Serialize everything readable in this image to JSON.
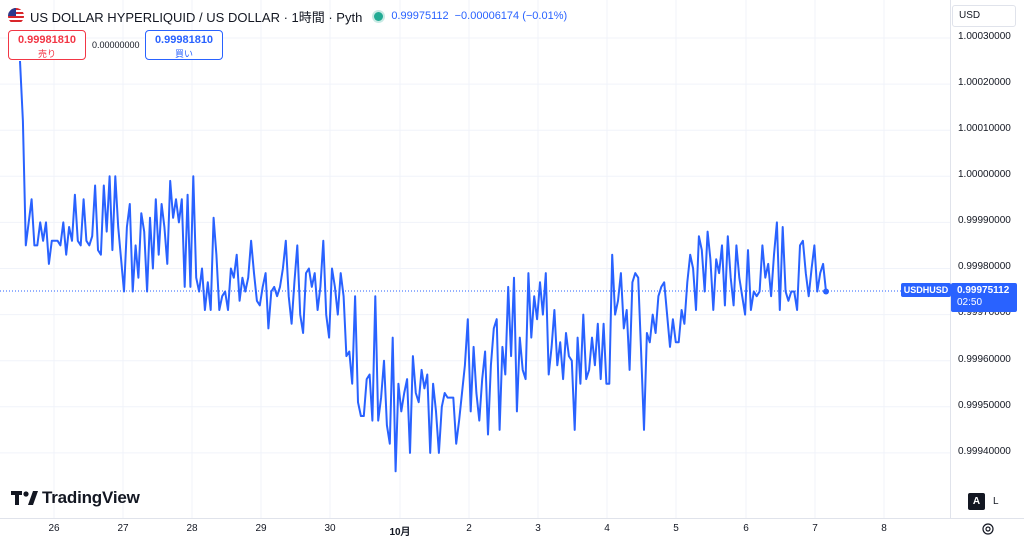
{
  "header": {
    "title": "US DOLLAR HYPERLIQUID / US DOLLAR · 1時間 · Pyth",
    "last": "0.99975112",
    "change": "−0.00006174 (−0.01%)",
    "flag_icon": "us-flag-icon",
    "live_icon": "live-status-dot-icon",
    "status_color": "#22ab94"
  },
  "trade": {
    "sell_price": "0.99981810",
    "sell_label": "売り",
    "spread": "0.00000000",
    "buy_price": "0.99981810",
    "buy_label": "買い",
    "sell_color": "#f23645",
    "buy_color": "#2962ff"
  },
  "currency_button": "USD",
  "last_price": {
    "symbol": "USDHUSD",
    "value": "0.99975112",
    "countdown": "02:50"
  },
  "bottom_controls": {
    "auto": "A",
    "log": "L",
    "settings_icon": "gear-icon"
  },
  "logo": {
    "text": "TradingView",
    "icon": "tradingview-logo-icon"
  },
  "chart_data": {
    "type": "line",
    "line_color": "#2962ff",
    "y_ticks": [
      "1.00030000",
      "1.00020000",
      "1.00010000",
      "1.00000000",
      "0.99990000",
      "0.99980000",
      "0.99970000",
      "0.99960000",
      "0.99950000",
      "0.99940000"
    ],
    "x_ticks": [
      "26",
      "27",
      "28",
      "29",
      "30",
      "10月",
      "2",
      "3",
      "4",
      "5",
      "6",
      "7",
      "8"
    ],
    "ylim": [
      0.99932,
      1.00033
    ],
    "grid": true,
    "series": [
      {
        "values": [
          1.00025,
          1.00012,
          0.99985,
          0.9999,
          0.99995,
          0.99985,
          0.99985,
          0.9999,
          0.99986,
          0.9999,
          0.99981,
          0.99986,
          0.99986,
          0.99986,
          0.99985,
          0.9999,
          0.99983,
          0.99989,
          0.99986,
          0.99996,
          0.99986,
          0.99985,
          0.99995,
          0.99986,
          0.99985,
          0.99987,
          0.99998,
          0.99984,
          0.99983,
          0.99998,
          0.99988,
          1.0,
          0.99984,
          1.0,
          0.99989,
          0.99982,
          0.99975,
          0.99989,
          0.99994,
          0.99975,
          0.99985,
          0.99978,
          0.99992,
          0.99988,
          0.99975,
          0.99991,
          0.9998,
          0.99995,
          0.99983,
          0.99994,
          0.99989,
          0.99981,
          0.99999,
          0.99991,
          0.99995,
          0.9999,
          0.99995,
          0.99976,
          0.99996,
          0.99976,
          1.0,
          0.99978,
          0.99975,
          0.9998,
          0.99971,
          0.99977,
          0.99971,
          0.99991,
          0.99983,
          0.99971,
          0.99974,
          0.99975,
          0.99971,
          0.9998,
          0.99978,
          0.99983,
          0.99973,
          0.99978,
          0.99975,
          0.99978,
          0.99986,
          0.99979,
          0.99973,
          0.99972,
          0.99976,
          0.99979,
          0.99967,
          0.99975,
          0.99976,
          0.99974,
          0.99976,
          0.9998,
          0.99986,
          0.99974,
          0.99968,
          0.99977,
          0.99985,
          0.9997,
          0.99966,
          0.99979,
          0.9998,
          0.99976,
          0.99979,
          0.99971,
          0.99976,
          0.99986,
          0.9997,
          0.99965,
          0.9998,
          0.99976,
          0.9997,
          0.99979,
          0.99974,
          0.99961,
          0.99962,
          0.99955,
          0.99974,
          0.99951,
          0.99948,
          0.99948,
          0.99956,
          0.99957,
          0.99947,
          0.99974,
          0.99947,
          0.99952,
          0.9996,
          0.99946,
          0.99942,
          0.99965,
          0.99936,
          0.99955,
          0.99949,
          0.99953,
          0.99956,
          0.9994,
          0.99961,
          0.99953,
          0.99951,
          0.99958,
          0.99954,
          0.99957,
          0.9994,
          0.99955,
          0.99949,
          0.9994,
          0.9995,
          0.99953,
          0.99952,
          0.99952,
          0.99952,
          0.99942,
          0.99947,
          0.99953,
          0.99959,
          0.99969,
          0.99949,
          0.99963,
          0.99953,
          0.99947,
          0.99956,
          0.99962,
          0.99944,
          0.99959,
          0.99967,
          0.99969,
          0.99945,
          0.99963,
          0.99957,
          0.99976,
          0.99961,
          0.99978,
          0.99949,
          0.99965,
          0.99958,
          0.99956,
          0.99979,
          0.99965,
          0.99974,
          0.99969,
          0.99977,
          0.9997,
          0.99979,
          0.99957,
          0.99963,
          0.99971,
          0.99959,
          0.99964,
          0.99956,
          0.99966,
          0.99961,
          0.9996,
          0.99945,
          0.99965,
          0.99955,
          0.9997,
          0.99956,
          0.99958,
          0.99965,
          0.99959,
          0.99968,
          0.99956,
          0.99968,
          0.99955,
          0.99955,
          0.99983,
          0.9997,
          0.99973,
          0.99979,
          0.99967,
          0.99971,
          0.99958,
          0.99977,
          0.99979,
          0.99978,
          0.99962,
          0.99945,
          0.99966,
          0.99964,
          0.9997,
          0.99966,
          0.99974,
          0.99976,
          0.99977,
          0.9997,
          0.99963,
          0.99969,
          0.99964,
          0.99964,
          0.99971,
          0.99968,
          0.99977,
          0.99983,
          0.9998,
          0.99971,
          0.99987,
          0.99984,
          0.99975,
          0.99988,
          0.99982,
          0.99971,
          0.99982,
          0.99979,
          0.99985,
          0.99972,
          0.99987,
          0.99978,
          0.99972,
          0.99985,
          0.99978,
          0.99974,
          0.9997,
          0.99984,
          0.99971,
          0.99975,
          0.99974,
          0.99975,
          0.99985,
          0.99978,
          0.99981,
          0.99974,
          0.99983,
          0.9999,
          0.99971,
          0.99989,
          0.99975,
          0.99973,
          0.99975,
          0.99975,
          0.99971,
          0.99985,
          0.99986,
          0.99979,
          0.99974,
          0.9998,
          0.99985,
          0.99975,
          0.99979,
          0.99981,
          0.99975
        ]
      }
    ]
  }
}
